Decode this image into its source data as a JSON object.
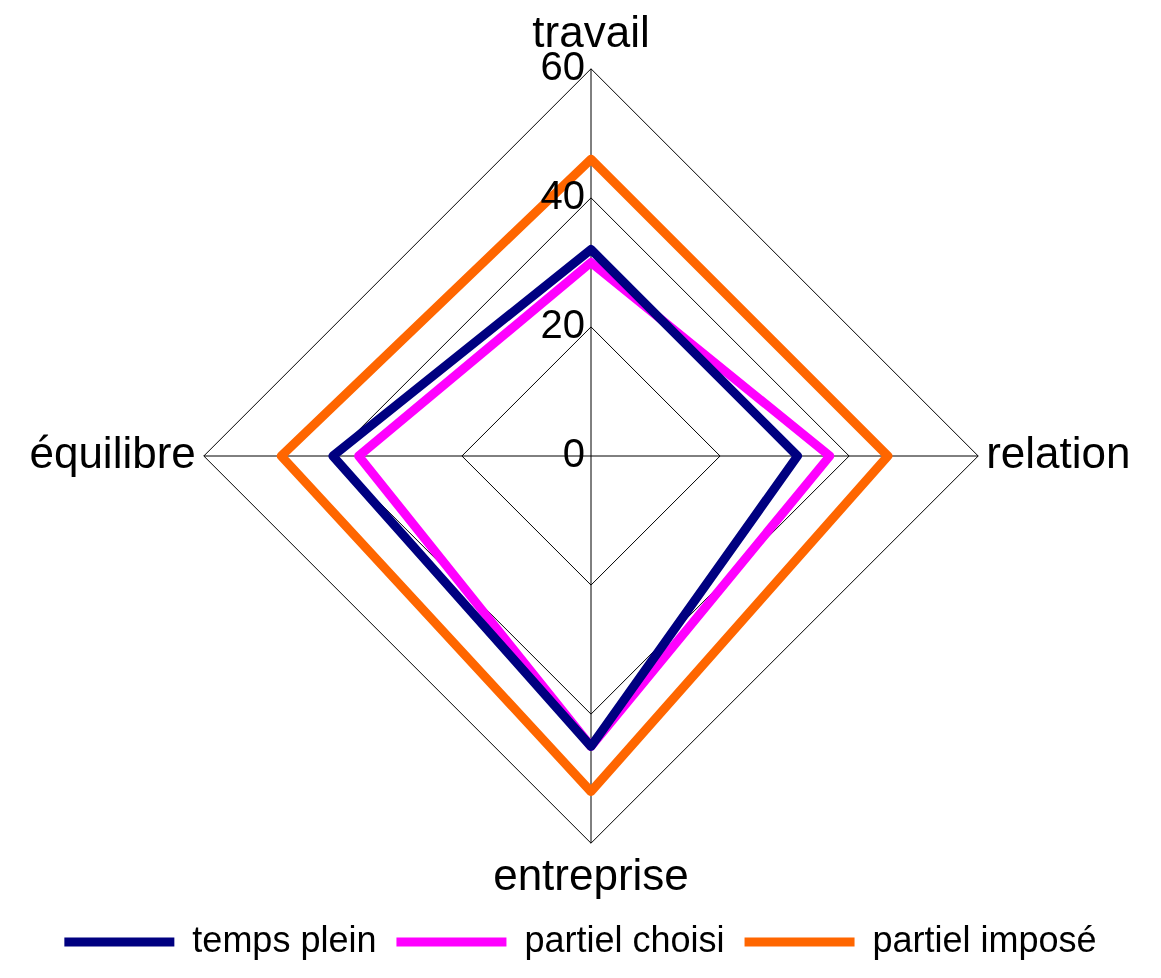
{
  "chart_data": {
    "type": "radar",
    "categories": [
      "travail",
      "relation",
      "entreprise",
      "équilibre"
    ],
    "series": [
      {
        "name": "temps plein",
        "color": "#000080",
        "values": [
          32,
          32,
          45,
          40
        ]
      },
      {
        "name": "partiel choisi",
        "color": "#ff00ff",
        "values": [
          30,
          37,
          45,
          36
        ]
      },
      {
        "name": "partiel imposé",
        "color": "#ff6600",
        "values": [
          46,
          46,
          52,
          48
        ]
      }
    ],
    "ylim": [
      0,
      60
    ],
    "yticks": [
      0,
      20,
      40,
      60
    ],
    "grid": true,
    "legend": "bottom",
    "marker": "none",
    "line_style": "solid"
  }
}
